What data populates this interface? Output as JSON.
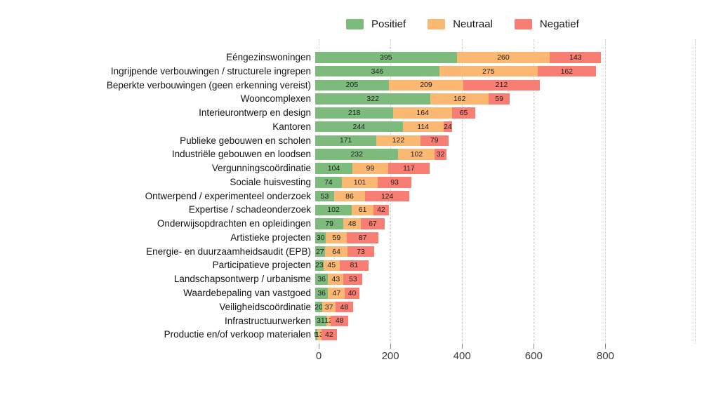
{
  "legend": [
    {
      "label": "Positief",
      "color": "#7cbb7c"
    },
    {
      "label": "Neutraal",
      "color": "#fbb873"
    },
    {
      "label": "Negatief",
      "color": "#f87d72"
    }
  ],
  "chart_data": {
    "type": "bar",
    "orientation": "horizontal",
    "stacked": true,
    "title": "",
    "xlabel": "",
    "ylabel": "",
    "grid": "dotted-vertical",
    "legend_position": "top",
    "xlim": [
      0,
      1050
    ],
    "x_ticks": [
      "0",
      "200",
      "400",
      "600",
      "800"
    ],
    "x_tick_values": [
      0,
      200,
      400,
      600,
      800
    ],
    "categories": [
      "Eéngezinswoningen",
      "Ingrijpende verbouwingen / structurele ingrepen",
      "Beperkte verbouwingen (geen erkenning vereist)",
      "Wooncomplexen",
      "Interieurontwerp en design",
      "Kantoren",
      "Publieke gebouwen en scholen",
      "Industriële gebouwen en loodsen",
      "Vergunningscoördinatie",
      "Sociale huisvesting",
      "Ontwerpend / experimenteel onderzoek",
      "Expertise / schadeonderzoek",
      "Onderwijsopdrachten en opleidingen",
      "Artistieke projecten",
      "Energie- en duurzaamheidsaudit (EPB)",
      "Participatieve projecten",
      "Landschapsontwerp / urbanisme",
      "Waardebepaling van vastgoed",
      "Veiligheidscoördinatie",
      "Infrastructuurwerken",
      "Productie en/of verkoop materialen"
    ],
    "series": [
      {
        "name": "Positief",
        "color": "#7cbb7c",
        "values": [
          395,
          346,
          205,
          322,
          218,
          244,
          171,
          232,
          104,
          74,
          53,
          102,
          79,
          30,
          27,
          23,
          36,
          36,
          20,
          31,
          5
        ]
      },
      {
        "name": "Neutraal",
        "color": "#fbb873",
        "values": [
          260,
          275,
          209,
          162,
          164,
          114,
          122,
          102,
          99,
          101,
          86,
          61,
          48,
          59,
          64,
          45,
          43,
          47,
          37,
          13,
          13
        ]
      },
      {
        "name": "Negatief",
        "color": "#f87d72",
        "values": [
          143,
          162,
          212,
          59,
          65,
          24,
          79,
          32,
          117,
          93,
          124,
          42,
          67,
          87,
          73,
          81,
          53,
          40,
          48,
          48,
          42
        ]
      }
    ]
  }
}
